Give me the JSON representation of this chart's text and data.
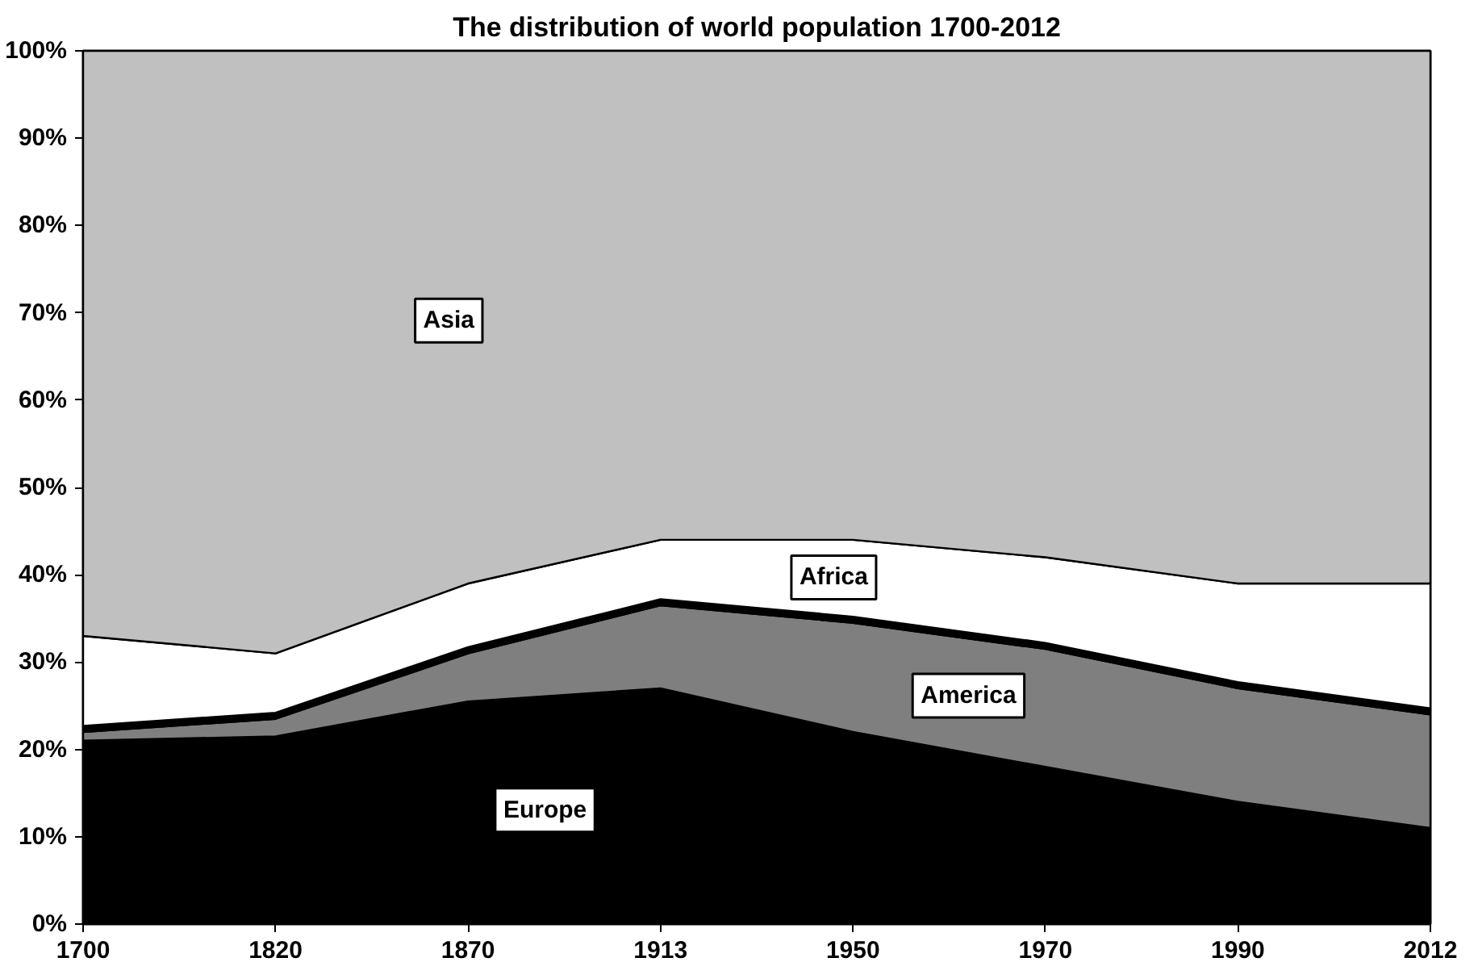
{
  "chart_data": {
    "type": "area",
    "stacked": true,
    "title": "The distribution of world population 1700-2012",
    "categories": [
      "1700",
      "1820",
      "1870",
      "1913",
      "1950",
      "1970",
      "1990",
      "2012"
    ],
    "series": [
      {
        "name": "Europe",
        "color": "#000000",
        "values": [
          21,
          21.5,
          25.5,
          27,
          22,
          18,
          14,
          11
        ]
      },
      {
        "name": "America",
        "color": "#7f7f7f",
        "values": [
          1,
          2,
          5.5,
          9.5,
          12.5,
          13.5,
          13,
          13
        ]
      },
      {
        "color": "#000000",
        "values": [
          0.7,
          0.7,
          0.7,
          0.7,
          0.7,
          0.7,
          0.7,
          0.7
        ]
      },
      {
        "name": "Africa",
        "color": "#ffffff",
        "values": [
          10.3,
          6.8,
          7.3,
          6.8,
          8.8,
          9.8,
          11.3,
          14.3
        ]
      },
      {
        "name": "Asia",
        "color": "#c0c0c0",
        "values": [
          67,
          69,
          61,
          56,
          56,
          58,
          61,
          61
        ]
      }
    ],
    "ylim": [
      0,
      100
    ],
    "yticks": [
      {
        "value": 0,
        "label": "0%"
      },
      {
        "value": 10,
        "label": "10%"
      },
      {
        "value": 20,
        "label": "20%"
      },
      {
        "value": 30,
        "label": "30%"
      },
      {
        "value": 40,
        "label": "40%"
      },
      {
        "value": 50,
        "label": "50%"
      },
      {
        "value": 60,
        "label": "60%"
      },
      {
        "value": 70,
        "label": "70%"
      },
      {
        "value": 80,
        "label": "80%"
      },
      {
        "value": 90,
        "label": "90%"
      },
      {
        "value": 100,
        "label": "100%"
      }
    ],
    "line_style": "solid"
  }
}
